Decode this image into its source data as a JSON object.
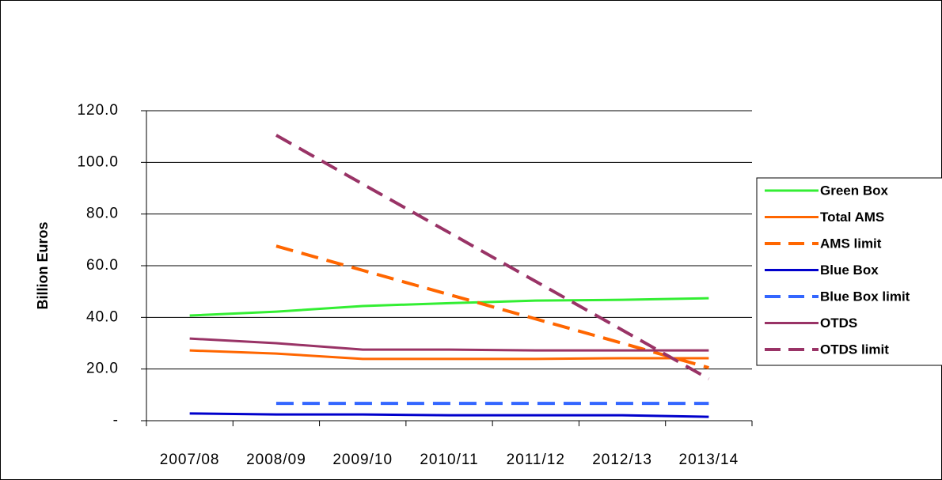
{
  "chart_data": {
    "type": "line",
    "y_label": "Billion Euros",
    "categories": [
      "2007/08",
      "2008/09",
      "2009/10",
      "2010/11",
      "2011/12",
      "2012/13",
      "2013/14"
    ],
    "series": [
      {
        "name": "Green Box",
        "color": "#33ee33",
        "dashed": false,
        "values": [
          40.7,
          42.2,
          44.4,
          45.5,
          46.5,
          46.8,
          47.4
        ]
      },
      {
        "name": "Total AMS",
        "color": "#ff6600",
        "dashed": false,
        "values": [
          27.2,
          26.0,
          23.9,
          23.9,
          23.9,
          24.2,
          24.2
        ]
      },
      {
        "name": "AMS limit",
        "color": "#ff6600",
        "dashed": true,
        "values": [
          null,
          67.6,
          58.2,
          48.8,
          39.4,
          30.0,
          20.5
        ]
      },
      {
        "name": "Blue Box",
        "color": "#0000cc",
        "dashed": false,
        "values": [
          2.8,
          2.4,
          2.4,
          2.1,
          2.1,
          2.1,
          1.5
        ]
      },
      {
        "name": "Blue Box limit",
        "color": "#3366ff",
        "dashed": true,
        "values": [
          null,
          6.7,
          6.7,
          6.7,
          6.7,
          6.7,
          6.7
        ]
      },
      {
        "name": "OTDS",
        "color": "#993366",
        "dashed": false,
        "values": [
          31.8,
          30.0,
          27.5,
          27.5,
          27.2,
          27.2,
          27.2
        ]
      },
      {
        "name": "OTDS limit",
        "color": "#993366",
        "dashed": true,
        "values": [
          null,
          110.5,
          91.6,
          72.8,
          53.9,
          35.1,
          16.2
        ]
      }
    ],
    "ylim": [
      0,
      120
    ],
    "yticks": [
      {
        "value": 0,
        "label": "-"
      },
      {
        "value": 20,
        "label": "20.0"
      },
      {
        "value": 40,
        "label": "40.0"
      },
      {
        "value": 60,
        "label": "60.0"
      },
      {
        "value": 80,
        "label": "80.0"
      },
      {
        "value": 100,
        "label": "100.0"
      },
      {
        "value": 120,
        "label": "120.0"
      }
    ],
    "grid": true,
    "legend": "right"
  }
}
